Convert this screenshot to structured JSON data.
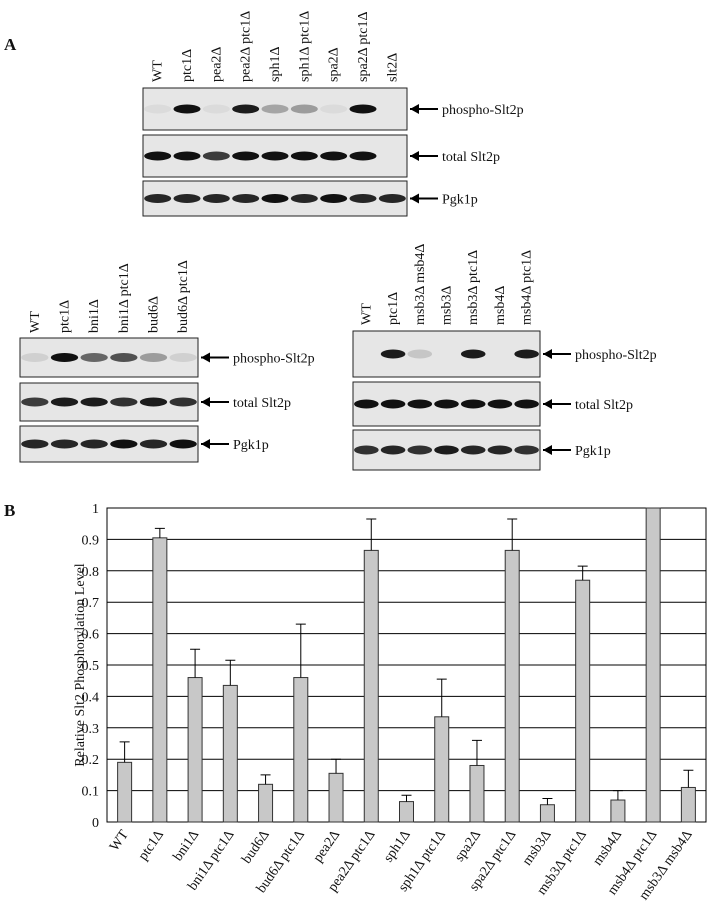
{
  "panels": {
    "a": "A",
    "b": "B"
  },
  "blots": [
    {
      "lanes": [
        "WT",
        "ptc1Δ",
        "pea2Δ",
        "pea2Δ ptc1Δ",
        "sph1Δ",
        "sph1Δ ptc1Δ",
        "spa2Δ",
        "spa2Δ ptc1Δ",
        "slt2Δ"
      ],
      "rows": [
        "phospho-Slt2p",
        "total Slt2p",
        "Pgk1p"
      ]
    },
    {
      "lanes": [
        "WT",
        "ptc1Δ",
        "bni1Δ",
        "bni1Δ ptc1Δ",
        "bud6Δ",
        "bud6Δ ptc1Δ"
      ],
      "rows": [
        "phospho-Slt2p",
        "total Slt2p",
        "Pgk1p"
      ]
    },
    {
      "lanes": [
        "WT",
        "ptc1Δ",
        "msb3Δ msb4Δ",
        "msb3Δ",
        "msb3Δ ptc1Δ",
        "msb4Δ",
        "msb4Δ ptc1Δ"
      ],
      "rows": [
        "phospho-Slt2p",
        "total Slt2p",
        "Pgk1p"
      ]
    }
  ],
  "chart_data": {
    "type": "bar",
    "y_label": "Relative Slt2 Phosphorylation Level",
    "categories": [
      "WT",
      "ptc1Δ",
      "bni1Δ",
      "bni1Δ ptc1Δ",
      "bud6Δ",
      "bud6Δ ptc1Δ",
      "pea2Δ",
      "pea2Δ ptc1Δ",
      "sph1Δ",
      "sph1Δ ptc1Δ",
      "spa2Δ",
      "spa2Δ ptc1Δ",
      "msb3Δ",
      "msb3Δ ptc1Δ",
      "msb4Δ",
      "msb4Δ ptc1Δ",
      "msb3Δ msb4Δ"
    ],
    "values": [
      0.19,
      0.905,
      0.46,
      0.435,
      0.12,
      0.46,
      0.155,
      0.865,
      0.065,
      0.335,
      0.18,
      0.865,
      0.055,
      0.77,
      0.07,
      1.0,
      0.11
    ],
    "errors": [
      0.065,
      0.03,
      0.09,
      0.08,
      0.03,
      0.17,
      0.045,
      0.1,
      0.02,
      0.12,
      0.08,
      0.1,
      0.02,
      0.045,
      0.03,
      null,
      0.055
    ],
    "color": "#c8c8c8",
    "ylim": [
      0,
      1
    ],
    "yticks": [
      0,
      0.1,
      0.2,
      0.3,
      0.4,
      0.5,
      0.6,
      0.7,
      0.8,
      0.9,
      1
    ],
    "grid": true
  }
}
